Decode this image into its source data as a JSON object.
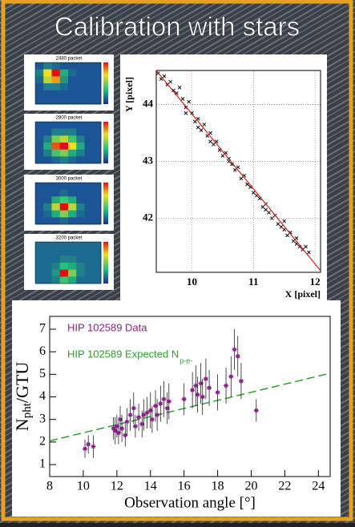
{
  "title": "Calibration with stars",
  "chart_data": [
    {
      "type": "heatmap",
      "title": "2480 packet",
      "values": [
        [
          0.1,
          0.2,
          0.15,
          0.1,
          0.1,
          0.1,
          0.1,
          0.1
        ],
        [
          0.2,
          0.7,
          1.0,
          0.3,
          0.15,
          0.1,
          0.1,
          0.1
        ],
        [
          0.15,
          0.6,
          0.8,
          0.25,
          0.1,
          0.1,
          0.1,
          0.1
        ],
        [
          0.1,
          0.2,
          0.2,
          0.15,
          0.1,
          0.1,
          0.1,
          0.1
        ],
        [
          0.1,
          0.1,
          0.1,
          0.1,
          0.1,
          0.1,
          0.1,
          0.1
        ],
        [
          0.1,
          0.1,
          0.1,
          0.1,
          0.1,
          0.1,
          0.1,
          0.1
        ]
      ]
    },
    {
      "type": "heatmap",
      "title": "2800 packet",
      "values": [
        [
          0.1,
          0.1,
          0.1,
          0.1,
          0.1,
          0.1,
          0.1,
          0.1
        ],
        [
          0.1,
          0.1,
          0.2,
          0.2,
          0.2,
          0.1,
          0.1,
          0.1
        ],
        [
          0.1,
          0.2,
          0.5,
          0.6,
          0.4,
          0.2,
          0.1,
          0.1
        ],
        [
          0.1,
          0.3,
          0.9,
          1.0,
          0.7,
          0.3,
          0.1,
          0.1
        ],
        [
          0.1,
          0.2,
          0.4,
          0.5,
          0.3,
          0.2,
          0.1,
          0.1
        ],
        [
          0.1,
          0.1,
          0.15,
          0.2,
          0.15,
          0.1,
          0.1,
          0.1
        ]
      ]
    },
    {
      "type": "heatmap",
      "title": "3000 packet",
      "values": [
        [
          0.1,
          0.1,
          0.1,
          0.1,
          0.1,
          0.1,
          0.1,
          0.1
        ],
        [
          0.1,
          0.1,
          0.1,
          0.15,
          0.1,
          0.1,
          0.1,
          0.1
        ],
        [
          0.1,
          0.1,
          0.3,
          0.4,
          0.3,
          0.1,
          0.1,
          0.1
        ],
        [
          0.1,
          0.2,
          0.6,
          1.0,
          0.6,
          0.2,
          0.1,
          0.1
        ],
        [
          0.1,
          0.15,
          0.3,
          0.5,
          0.3,
          0.15,
          0.1,
          0.1
        ],
        [
          0.1,
          0.1,
          0.1,
          0.15,
          0.1,
          0.1,
          0.1,
          0.1
        ]
      ]
    },
    {
      "type": "heatmap",
      "title": "3200 packet",
      "values": [
        [
          0.15,
          0.15,
          0.15,
          0.15,
          0.15,
          0.15,
          0.15,
          0.15
        ],
        [
          0.15,
          0.15,
          0.15,
          0.15,
          0.15,
          0.15,
          0.15,
          0.15
        ],
        [
          0.15,
          0.15,
          0.15,
          0.2,
          0.2,
          0.15,
          0.15,
          0.15
        ],
        [
          0.15,
          0.15,
          0.2,
          0.35,
          0.3,
          0.2,
          0.15,
          0.15
        ],
        [
          0.15,
          0.15,
          0.25,
          1.0,
          0.5,
          0.2,
          0.15,
          0.15
        ],
        [
          0.15,
          0.15,
          0.2,
          0.4,
          0.3,
          0.15,
          0.15,
          0.15
        ]
      ]
    },
    {
      "type": "scatter",
      "x_label": "X [pixel]",
      "y_label": "Y [pixel]",
      "xlim": [
        9.42,
        12.09
      ],
      "ylim": [
        41.05,
        44.6
      ],
      "xticks": [
        10,
        11,
        12
      ],
      "yticks": [
        42,
        43,
        44
      ],
      "grid": true,
      "color": "#111111",
      "fit_color": "#d62020",
      "x": [
        9.45,
        9.5,
        9.55,
        9.6,
        9.65,
        9.7,
        9.75,
        9.8,
        9.85,
        9.9,
        9.95,
        10.0,
        10.05,
        10.1,
        10.15,
        10.2,
        10.25,
        10.3,
        10.35,
        10.4,
        10.45,
        10.5,
        10.55,
        10.6,
        10.65,
        10.7,
        10.75,
        10.8,
        10.85,
        10.9,
        10.95,
        11.0,
        11.05,
        11.1,
        11.15,
        11.2,
        11.25,
        11.3,
        11.35,
        11.4,
        11.45,
        11.5,
        11.55,
        11.6,
        11.65,
        11.7,
        11.75,
        11.8,
        11.85,
        11.9,
        9.9,
        10.1,
        10.3,
        10.6,
        10.9,
        11.2,
        11.5,
        11.7
      ],
      "y": [
        44.55,
        44.45,
        44.5,
        44.35,
        44.4,
        44.25,
        44.2,
        44.3,
        44.1,
        43.95,
        44.05,
        43.85,
        43.7,
        43.75,
        43.55,
        43.65,
        43.45,
        43.5,
        43.3,
        43.35,
        43.2,
        43.1,
        43.15,
        43.0,
        42.95,
        42.85,
        42.9,
        42.7,
        42.75,
        42.6,
        42.55,
        42.45,
        42.4,
        42.35,
        42.2,
        42.25,
        42.1,
        42.0,
        42.05,
        41.9,
        41.85,
        41.8,
        41.7,
        41.75,
        41.6,
        41.55,
        41.5,
        41.45,
        41.5,
        41.4,
        43.85,
        43.6,
        43.35,
        43.05,
        42.6,
        42.15,
        41.95,
        41.65
      ],
      "fit": {
        "x": [
          9.42,
          12.09
        ],
        "y": [
          44.6,
          41.08
        ]
      }
    },
    {
      "type": "errorbar",
      "x_label": "Observation angle [°]",
      "y_label": [
        "N",
        "pht",
        "/GTU"
      ],
      "xlim": [
        8,
        24.7
      ],
      "ylim": [
        0.47,
        7.57
      ],
      "xticks": [
        8,
        10,
        12,
        14,
        16,
        18,
        20,
        22,
        24
      ],
      "yticks": [
        1,
        2,
        3,
        4,
        5,
        6,
        7
      ],
      "data": {
        "name": "HIP 102589 Data",
        "color": "#8a1f8c",
        "x": [
          10.1,
          10.3,
          10.6,
          11.8,
          11.9,
          12.0,
          12.1,
          12.2,
          12.3,
          12.5,
          12.6,
          12.8,
          13.0,
          13.1,
          13.3,
          13.5,
          13.6,
          13.8,
          14.0,
          14.1,
          14.3,
          14.4,
          14.6,
          14.8,
          15.0,
          15.1,
          16.0,
          16.5,
          16.7,
          16.8,
          17.0,
          17.1,
          17.3,
          17.5,
          18.0,
          18.5,
          18.8,
          19.0,
          19.2,
          19.4,
          20.3
        ],
        "values": [
          1.7,
          1.9,
          1.8,
          2.6,
          2.5,
          2.7,
          2.4,
          3.0,
          2.6,
          2.3,
          2.9,
          3.2,
          3.5,
          2.7,
          3.1,
          2.8,
          3.2,
          3.3,
          3.4,
          3.0,
          3.6,
          3.2,
          3.7,
          3.9,
          3.5,
          3.8,
          3.9,
          4.3,
          4.5,
          4.1,
          4.6,
          4.0,
          4.8,
          4.4,
          4.2,
          4.5,
          4.9,
          6.1,
          5.8,
          4.7,
          3.4
        ],
        "errors": [
          0.4,
          0.4,
          0.5,
          0.5,
          0.6,
          0.5,
          0.5,
          0.6,
          0.6,
          0.5,
          0.6,
          0.7,
          0.7,
          0.5,
          0.6,
          0.6,
          0.7,
          0.7,
          0.8,
          0.6,
          0.7,
          0.7,
          0.8,
          0.8,
          0.7,
          0.8,
          0.7,
          0.8,
          0.9,
          0.8,
          0.9,
          0.8,
          0.9,
          0.8,
          0.8,
          0.8,
          0.9,
          0.9,
          0.9,
          0.8,
          0.5
        ]
      },
      "expected": {
        "name": "HIP 102589 Expected N",
        "name_subscript": "p-e-",
        "color": "#2ca02c",
        "x": [
          8,
          24.7
        ],
        "values": [
          2.05,
          5.05
        ]
      }
    }
  ]
}
